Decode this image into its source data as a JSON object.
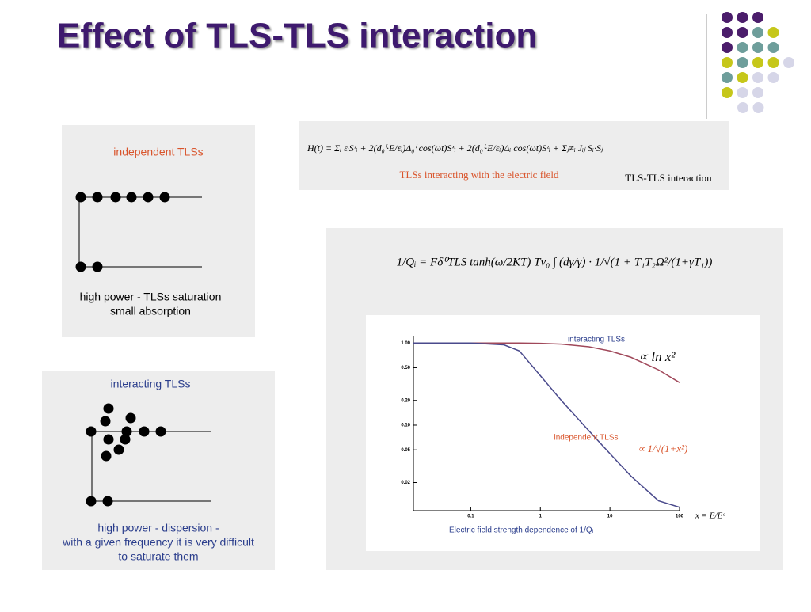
{
  "title": "Effect of TLS-TLS interaction",
  "panels": [
    {
      "heading": "independent TLSs",
      "caption": [
        "high power - TLSs saturation",
        "small absorption"
      ]
    },
    {
      "heading": "interacting TLSs",
      "caption": [
        "high power - dispersion -",
        "with a given frequency it is very difficult",
        "to saturate them"
      ]
    }
  ],
  "hamiltonian": {
    "formula": "H(t) = Σᵢ εᵢSᶻᵢ + 2(d₀ⁱ·E/εᵢ)Δ₀ⁱ cos(ωt)Sˣᵢ + 2(d₀ⁱ·E/εᵢ)Δᵢ cos(ωt)Sᶻᵢ + Σⱼ≠ᵢ Jᵢⱼ Sᵢ·Sⱼ",
    "label_field": "TLSs interacting with the electric field",
    "label_interaction": "TLS-TLS interaction"
  },
  "quality_factor": {
    "formula": "1/Qᵢ = Fδ⁰TLS tanh(ω/2KT) Tν₀ ∫ (dγ/γ) · 1/√(1 + T₁T₂Ω²/(1+γT₁))"
  },
  "chart_data": {
    "type": "line",
    "log_x": true,
    "log_y": true,
    "xlabel": "Electric field strength dependence of 1/Qᵢ",
    "x": [
      0.015,
      0.1,
      0.3,
      0.5,
      1,
      2,
      5,
      10,
      20,
      50,
      100
    ],
    "series": [
      {
        "name": "interacting TLSs",
        "color": "#a0485a",
        "values": [
          1,
          1,
          1,
          1,
          0.99,
          0.97,
          0.9,
          0.8,
          0.67,
          0.47,
          0.33
        ]
      },
      {
        "name": "independent TLSs",
        "color": "#4a4a8c",
        "values": [
          1,
          1,
          0.95,
          0.8,
          0.4,
          0.2,
          0.085,
          0.045,
          0.024,
          0.012,
          0.01
        ]
      }
    ],
    "annotations": [
      "∝ ln x²",
      "∝ 1/√(1+x²)",
      "x = E/Eᶜ"
    ],
    "xlim": [
      0.015,
      100
    ],
    "ylim": [
      0.0091,
      1.2
    ],
    "xticks": [
      0.1,
      1,
      10,
      100
    ],
    "yticks": [
      {
        "value": 1,
        "label": "1.00"
      },
      {
        "value": 0.5,
        "label": "0.50"
      },
      {
        "value": 0.2,
        "label": "0.20"
      },
      {
        "value": 0.1,
        "label": "0.10"
      },
      0.05,
      0.02
    ]
  }
}
